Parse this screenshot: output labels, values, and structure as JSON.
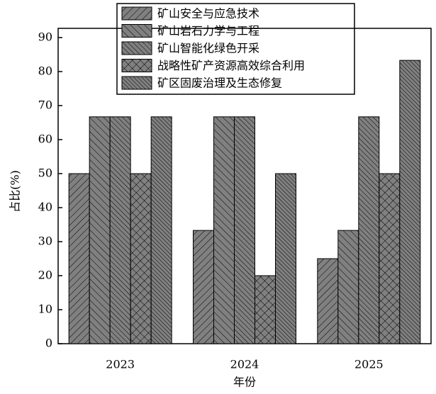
{
  "chart_data": {
    "type": "bar",
    "x_label": "年份",
    "y_label": "占比(%)",
    "categories": [
      "2023",
      "2024",
      "2025"
    ],
    "series": [
      {
        "name": "矿山安全与应急技术",
        "color": "#808080",
        "values": [
          50,
          33.3,
          25
        ]
      },
      {
        "name": "矿山岩石力学与工程",
        "color": "#808080",
        "values": [
          66.7,
          66.7,
          33.3
        ]
      },
      {
        "name": "矿山智能化绿色开采",
        "color": "#808080",
        "values": [
          66.7,
          66.7,
          66.7
        ]
      },
      {
        "name": "战略性矿产资源高效综合利用",
        "color": "#808080",
        "values": [
          50,
          20,
          50
        ]
      },
      {
        "name": "矿区固废治理及生态修复",
        "color": "#808080",
        "values": [
          66.7,
          50,
          83.3
        ]
      }
    ],
    "ylim": [
      0,
      90
    ],
    "yticks": [
      0,
      10,
      20,
      30,
      40,
      50,
      60,
      70,
      80,
      90
    ]
  }
}
